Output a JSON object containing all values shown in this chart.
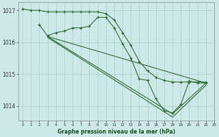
{
  "background_color": "#cce8e8",
  "grid_color": "#aacccc",
  "line_color": "#2d6b2d",
  "title": "Graphe pression niveau de la mer (hPa)",
  "xlabel_color": "#1a4d1a",
  "xlim": [
    -0.5,
    23
  ],
  "ylim": [
    1013.55,
    1017.25
  ],
  "yticks": [
    1014,
    1015,
    1016,
    1017
  ],
  "xticks": [
    0,
    1,
    2,
    3,
    4,
    5,
    6,
    7,
    8,
    9,
    10,
    11,
    12,
    13,
    14,
    15,
    16,
    17,
    18,
    19,
    20,
    21,
    22,
    23
  ],
  "series": [
    {
      "x": [
        0,
        1,
        2,
        3,
        4,
        5,
        6,
        7,
        8,
        9,
        10,
        11,
        12,
        13,
        14,
        15,
        16,
        17,
        18,
        19,
        20,
        21,
        22
      ],
      "y": [
        1017.05,
        1017.0,
        1017.0,
        1016.95,
        1016.95,
        1016.95,
        1016.95,
        1016.95,
        1016.95,
        1016.95,
        1016.9,
        1016.7,
        1016.3,
        1015.9,
        1015.4,
        1015.1,
        1014.9,
        1014.8,
        1014.75,
        1014.75,
        1014.75,
        1014.75,
        1014.75
      ]
    },
    {
      "x": [
        2,
        3,
        4,
        5,
        6,
        7,
        8,
        9,
        10,
        11,
        12,
        13,
        14,
        15,
        16,
        17,
        18,
        19,
        20,
        21,
        22
      ],
      "y": [
        1016.55,
        1016.2,
        1016.3,
        1016.35,
        1016.45,
        1016.45,
        1016.5,
        1016.78,
        1016.78,
        1016.45,
        1015.95,
        1015.5,
        1014.85,
        1014.8,
        1014.22,
        1013.85,
        1013.78,
        1014.05,
        1014.78,
        1014.72,
        1014.72
      ]
    },
    {
      "x": [
        3,
        22
      ],
      "y": [
        1016.18,
        1014.72
      ]
    },
    {
      "x": [
        3,
        18,
        22
      ],
      "y": [
        1016.18,
        1013.75,
        1014.72
      ]
    },
    {
      "x": [
        3,
        18,
        22
      ],
      "y": [
        1016.15,
        1013.65,
        1014.65
      ]
    }
  ]
}
